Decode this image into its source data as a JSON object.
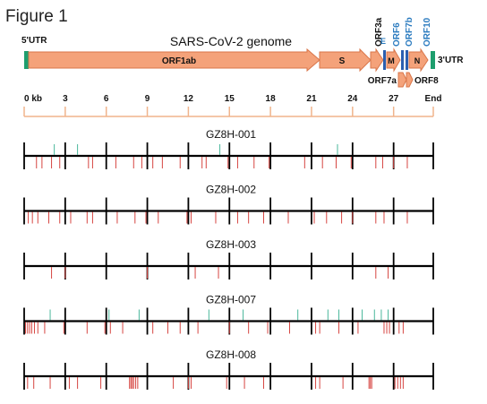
{
  "figure_label": "Figure 1",
  "genome": {
    "title": "SARS-CoV-2 genome",
    "utr5": "5'UTR",
    "utr3": "3'UTR",
    "genes": {
      "orf1ab": "ORF1ab",
      "s": "S",
      "orf3a": "ORF3a",
      "e": "E",
      "m": "M",
      "orf6": "ORF6",
      "orf7a": "ORF7a",
      "orf7b": "ORF7b",
      "orf8": "ORF8",
      "n": "N",
      "orf10": "ORF10"
    }
  },
  "scale": {
    "ticks": [
      "0 kb",
      "3",
      "6",
      "9",
      "12",
      "15",
      "18",
      "21",
      "24",
      "27",
      "End"
    ]
  },
  "colors": {
    "gene_fill": "#f4a27a",
    "gene_stroke": "#d9764a",
    "utr": "#1e9e6e",
    "blue_label": "#2b7bbf",
    "scale": "#f0b48c",
    "mutation_red": "#d64541",
    "mutation_teal": "#4ab79b"
  },
  "samples": [
    {
      "name": "GZ8H-001",
      "above": [
        2.2,
        3.9,
        14.3,
        22.9
      ],
      "below": [
        0.9,
        1.3,
        2.0,
        2.6,
        4.7,
        5.0,
        6.7,
        8.0,
        8.6,
        9.4,
        10.1,
        11.4,
        13.0,
        13.3,
        14.9,
        15.6,
        16.8,
        17.9,
        20.5,
        21.8,
        22.8,
        23.9,
        25.7,
        26.2,
        27.0,
        28.0
      ]
    },
    {
      "name": "GZ8H-002",
      "above": [],
      "below": [
        0.3,
        0.6,
        1.0,
        1.8,
        2.6,
        3.4,
        4.6,
        5.0,
        6.8,
        8.1,
        8.9,
        9.8,
        11.9,
        12.2,
        14.0,
        15.6,
        16.4,
        17.5,
        19.3,
        21.2,
        22.1,
        23.2,
        24.0,
        25.7,
        26.3,
        28.0
      ]
    },
    {
      "name": "GZ8H-003",
      "above": [],
      "below": [
        2.0,
        3.0,
        9.0,
        12.5,
        14.2,
        25.7,
        26.6
      ]
    },
    {
      "name": "GZ8H-007",
      "above": [
        1.9,
        6.2,
        8.4,
        13.5,
        16.0,
        20.0,
        22.2,
        23.0,
        24.7,
        25.6,
        26.1,
        26.6
      ],
      "below": [
        0.1,
        0.25,
        0.4,
        0.55,
        0.75,
        1.0,
        1.5,
        2.9,
        4.6,
        5.9,
        6.3,
        7.2,
        9.4,
        10.5,
        11.4,
        12.7,
        15.0,
        16.4,
        17.8,
        19.4,
        21.3,
        21.6,
        23.0,
        24.4,
        26.3,
        26.5,
        26.7,
        27.4,
        27.7
      ]
    },
    {
      "name": "GZ8H-008",
      "above": [],
      "below": [
        0.25,
        0.7,
        1.9,
        3.3,
        3.9,
        5.6,
        7.7,
        7.8,
        7.9,
        8.0,
        8.15,
        8.3,
        10.9,
        12.0,
        12.2,
        14.8,
        16.1,
        17.5,
        21.3,
        21.6,
        23.3,
        25.2,
        25.3,
        25.4,
        27.1,
        27.3,
        27.5,
        27.7
      ]
    }
  ]
}
